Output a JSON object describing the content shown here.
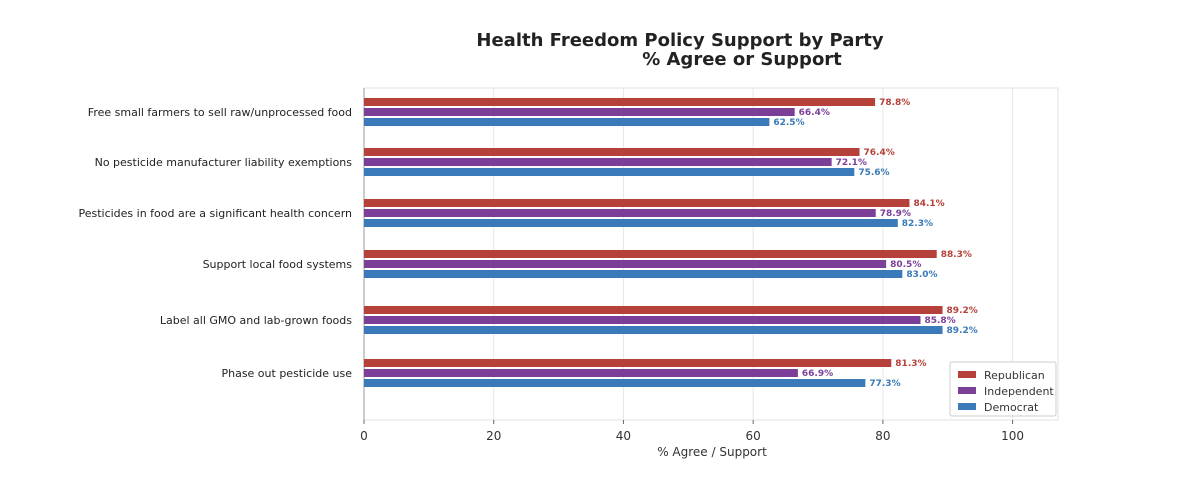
{
  "chart_data": {
    "type": "bar",
    "orientation": "horizontal",
    "title": "Health Freedom Policy Support by Party",
    "subtitle": "% Agree or Support",
    "xlabel": "% Agree / Support",
    "ylabel": "",
    "xlim": [
      0,
      107
    ],
    "xticks": [
      0,
      20,
      40,
      60,
      80,
      100
    ],
    "grid": true,
    "legend_position": "bottom-right",
    "categories": [
      "Free small farmers to sell raw/unprocessed food",
      "No pesticide manufacturer liability exemptions",
      "Pesticides in food are a significant health concern",
      "Support local food systems",
      "Label all GMO and lab-grown foods",
      "Phase out pesticide use"
    ],
    "series": [
      {
        "name": "Republican",
        "color": "#b5413a",
        "values": [
          78.8,
          76.4,
          84.1,
          88.3,
          89.2,
          81.3
        ]
      },
      {
        "name": "Independent",
        "color": "#7b3f98",
        "values": [
          66.4,
          72.1,
          78.9,
          80.5,
          85.8,
          66.9
        ]
      },
      {
        "name": "Democrat",
        "color": "#3a7ab8",
        "values": [
          62.5,
          75.6,
          82.3,
          83.0,
          89.2,
          77.3
        ]
      }
    ],
    "value_suffix": "%"
  }
}
